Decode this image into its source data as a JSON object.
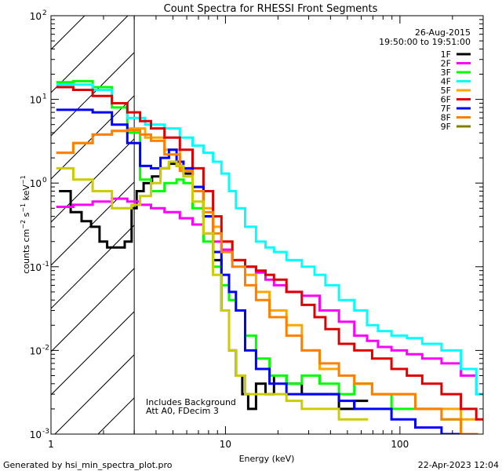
{
  "chart_data": {
    "type": "line",
    "title": "Count Spectra for RHESSI Front Segments",
    "xlabel": "Energy (keV)",
    "ylabel": "counts cm⁻² s⁻¹ keV⁻¹",
    "ylabel_parts": {
      "base": "counts cm",
      "sup1": "−2",
      "mid1": " s",
      "sup2": "−1",
      "mid2": " keV",
      "sup3": "−1"
    },
    "xscale": "log",
    "yscale": "log",
    "xlim": [
      1,
      300
    ],
    "ylim": [
      0.001,
      100
    ],
    "x_tick_labels": [
      {
        "v": 1,
        "t": "1"
      },
      {
        "v": 10,
        "t": "10"
      },
      {
        "v": 100,
        "t": "100"
      }
    ],
    "y_tick_labels": [
      {
        "v": 100,
        "t": "10",
        "e": "2"
      },
      {
        "v": 10,
        "t": "10",
        "e": "1"
      },
      {
        "v": 1,
        "t": "10",
        "e": "0"
      },
      {
        "v": 0.1,
        "t": "10",
        "e": "-1"
      },
      {
        "v": 0.01,
        "t": "10",
        "e": "-2"
      },
      {
        "v": 0.001,
        "t": "10",
        "e": "-3"
      }
    ],
    "hatched_region_max_energy_kev": 3,
    "legend_position": "top-right",
    "date": "26-Aug-2015",
    "time_range": "19:50:00 to 19:51:00",
    "annotations": [
      "Includes Background",
      "Att A0, FDecim 3"
    ],
    "series": [
      {
        "name": "1F",
        "color": "#000000",
        "x": [
          1.2,
          1.4,
          1.6,
          1.8,
          2.0,
          2.2,
          2.5,
          2.8,
          3.0,
          3.2,
          3.6,
          4.0,
          4.5,
          5.0,
          5.5,
          6.0,
          7.0,
          8.0,
          9.0,
          10.0,
          11.0,
          12.0,
          13.0,
          14.0,
          16.0,
          18.0,
          20.0,
          25.0,
          30.0,
          40.0,
          50.0,
          60.0
        ],
        "y": [
          0.8,
          0.45,
          0.35,
          0.3,
          0.2,
          0.17,
          0.17,
          0.2,
          0.5,
          0.8,
          1.0,
          1.2,
          1.5,
          1.7,
          1.6,
          1.3,
          0.8,
          0.4,
          0.12,
          0.03,
          0.01,
          0.005,
          0.003,
          0.002,
          0.004,
          0.003,
          0.005,
          0.004,
          0.003,
          0.003,
          0.002,
          0.0025
        ]
      },
      {
        "name": "2F",
        "color": "#ff00ff",
        "x": [
          1.2,
          1.5,
          2.0,
          2.5,
          3.0,
          3.5,
          4.0,
          5.0,
          6.0,
          7.0,
          8.0,
          9.0,
          10.0,
          12.0,
          14.0,
          16.0,
          18.0,
          20.0,
          25.0,
          30.0,
          40.0,
          50.0,
          60.0,
          70.0,
          80.0,
          100.0,
          120.0,
          150.0,
          200.0,
          250.0,
          300.0
        ],
        "y": [
          0.52,
          0.55,
          0.6,
          0.65,
          0.6,
          0.55,
          0.5,
          0.45,
          0.38,
          0.32,
          0.25,
          0.2,
          0.16,
          0.12,
          0.1,
          0.085,
          0.07,
          0.06,
          0.05,
          0.045,
          0.03,
          0.022,
          0.015,
          0.013,
          0.011,
          0.01,
          0.009,
          0.008,
          0.007,
          0.005,
          0.003
        ]
      },
      {
        "name": "3F",
        "color": "#00ff00",
        "x": [
          1.2,
          1.5,
          2.0,
          2.5,
          3.0,
          3.5,
          4.0,
          5.0,
          5.5,
          6.0,
          7.0,
          8.0,
          9.0,
          10.0,
          11.0,
          12.0,
          14.0,
          16.0,
          20.0,
          25.0,
          30.0,
          40.0,
          50.0,
          60.0,
          80.0,
          100.0,
          150.0,
          200.0,
          250.0
        ],
        "y": [
          16.0,
          16.5,
          14.0,
          8.0,
          4.0,
          1.1,
          0.8,
          1.0,
          1.1,
          1.0,
          0.5,
          0.2,
          0.1,
          0.06,
          0.04,
          0.03,
          0.015,
          0.008,
          0.005,
          0.004,
          0.005,
          0.004,
          0.003,
          0.004,
          0.003,
          0.002,
          0.002,
          0.0015,
          0.001
        ]
      },
      {
        "name": "4F",
        "color": "#00ffff",
        "x": [
          1.2,
          1.5,
          2.0,
          2.5,
          3.0,
          4.0,
          5.0,
          6.0,
          7.0,
          8.0,
          9.0,
          10.0,
          11.0,
          12.0,
          14.0,
          16.0,
          18.0,
          20.0,
          25.0,
          30.0,
          35.0,
          40.0,
          50.0,
          60.0,
          70.0,
          80.0,
          100.0,
          120.0,
          150.0,
          200.0,
          250.0,
          300.0
        ],
        "y": [
          15.0,
          15.0,
          13.0,
          9.0,
          6.0,
          5.0,
          4.5,
          3.5,
          2.8,
          2.3,
          1.8,
          1.3,
          0.8,
          0.5,
          0.3,
          0.2,
          0.17,
          0.15,
          0.12,
          0.1,
          0.08,
          0.06,
          0.04,
          0.03,
          0.02,
          0.017,
          0.015,
          0.014,
          0.012,
          0.01,
          0.006,
          0.003
        ]
      },
      {
        "name": "5F",
        "color": "#ffa500",
        "x": [
          1.2,
          1.5,
          2.0,
          2.5,
          3.0,
          4.0,
          5.0,
          6.0,
          7.0,
          8.0,
          9.0,
          10.0,
          12.0,
          14.0,
          16.0,
          20.0,
          25.0,
          30.0,
          40.0,
          50.0,
          60.0,
          80.0,
          100.0,
          150.0,
          200.0,
          250.0
        ],
        "y": [
          2.3,
          3.0,
          3.8,
          4.2,
          4.5,
          3.5,
          2.5,
          1.5,
          0.9,
          0.5,
          0.3,
          0.2,
          0.12,
          0.08,
          0.05,
          0.03,
          0.02,
          0.01,
          0.006,
          0.005,
          0.004,
          0.003,
          0.003,
          0.002,
          0.002,
          0.0015
        ]
      },
      {
        "name": "6F",
        "color": "#dd0000",
        "x": [
          1.2,
          1.5,
          2.0,
          2.5,
          3.0,
          3.5,
          4.0,
          5.0,
          6.0,
          7.0,
          8.0,
          9.0,
          10.0,
          12.0,
          14.0,
          16.0,
          18.0,
          20.0,
          25.0,
          30.0,
          35.0,
          40.0,
          50.0,
          60.0,
          80.0,
          100.0,
          120.0,
          150.0,
          200.0,
          250.0,
          300.0
        ],
        "y": [
          14.0,
          13.0,
          11.0,
          9.0,
          7.0,
          5.5,
          4.5,
          3.5,
          2.5,
          1.5,
          0.8,
          0.4,
          0.2,
          0.12,
          0.1,
          0.09,
          0.08,
          0.07,
          0.05,
          0.035,
          0.025,
          0.018,
          0.012,
          0.01,
          0.008,
          0.006,
          0.005,
          0.004,
          0.003,
          0.002,
          0.0015
        ]
      },
      {
        "name": "7F",
        "color": "#0000ff",
        "x": [
          1.2,
          1.5,
          2.0,
          2.5,
          3.0,
          3.5,
          4.0,
          4.5,
          5.0,
          5.5,
          6.0,
          7.0,
          8.0,
          9.0,
          10.0,
          11.0,
          12.0,
          14.0,
          16.0,
          20.0,
          25.0,
          30.0,
          40.0,
          50.0,
          60.0,
          80.0,
          100.0,
          150.0,
          200.0,
          250.0
        ],
        "y": [
          7.5,
          7.5,
          7.0,
          5.0,
          3.0,
          1.6,
          1.5,
          2.0,
          2.5,
          1.8,
          1.5,
          0.9,
          0.4,
          0.15,
          0.08,
          0.05,
          0.03,
          0.01,
          0.006,
          0.004,
          0.003,
          0.003,
          0.003,
          0.0025,
          0.002,
          0.002,
          0.0015,
          0.0012,
          0.001,
          0.001
        ]
      },
      {
        "name": "8F",
        "color": "#ff8000",
        "x": [
          1.2,
          1.5,
          2.0,
          2.5,
          3.0,
          3.5,
          4.0,
          5.0,
          6.0,
          7.0,
          8.0,
          9.0,
          10.0,
          12.0,
          14.0,
          16.0,
          20.0,
          25.0,
          30.0,
          40.0,
          50.0,
          60.0,
          80.0,
          100.0,
          150.0,
          200.0,
          250.0
        ],
        "y": [
          2.3,
          3.0,
          3.8,
          4.2,
          4.3,
          3.8,
          3.2,
          2.2,
          1.4,
          0.8,
          0.45,
          0.25,
          0.15,
          0.1,
          0.06,
          0.04,
          0.025,
          0.015,
          0.01,
          0.007,
          0.005,
          0.004,
          0.003,
          0.003,
          0.002,
          0.0015,
          0.001
        ]
      },
      {
        "name": "9F",
        "color": "#808000",
        "x": [],
        "y": []
      },
      {
        "name": "9F-yellow",
        "color": "#cccc00",
        "legend": false,
        "x": [
          1.2,
          1.5,
          2.0,
          2.5,
          2.8,
          3.0,
          3.5,
          4.0,
          4.5,
          5.0,
          5.5,
          6.0,
          7.0,
          8.0,
          9.0,
          10.0,
          11.0,
          12.0,
          14.0,
          16.0,
          20.0,
          25.0,
          30.0,
          40.0,
          50.0,
          60.0
        ],
        "y": [
          1.5,
          1.1,
          0.8,
          0.5,
          0.5,
          0.55,
          0.7,
          1.0,
          1.5,
          1.8,
          1.6,
          1.2,
          0.6,
          0.25,
          0.08,
          0.03,
          0.01,
          0.005,
          0.003,
          0.003,
          0.003,
          0.0025,
          0.002,
          0.002,
          0.0015,
          0.0015
        ]
      }
    ]
  },
  "footer": {
    "generated_by": "Generated by hsi_min_spectra_plot.pro",
    "timestamp": "22-Apr-2023 12:04"
  }
}
